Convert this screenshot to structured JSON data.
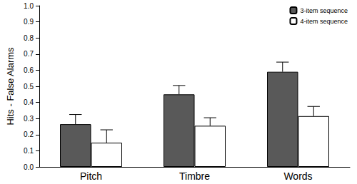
{
  "chart_data": {
    "type": "bar",
    "y_label": "Hits - False Alarms",
    "categories": [
      "Pitch",
      "Timbre",
      "Words"
    ],
    "series": [
      {
        "name": "3-item sequence",
        "color": "#595959",
        "values": [
          0.265,
          0.45,
          0.59
        ],
        "errors": [
          0.06,
          0.055,
          0.06
        ]
      },
      {
        "name": "4-item sequence",
        "color": "#ffffff",
        "values": [
          0.15,
          0.255,
          0.315
        ],
        "errors": [
          0.08,
          0.05,
          0.06
        ]
      }
    ],
    "ylim": [
      0,
      1
    ],
    "yticks": [
      {
        "value": 0,
        "label": "0.0"
      },
      0.1,
      0.2,
      0.3,
      0.4,
      0.5,
      0.6,
      0.7,
      0.8,
      0.9,
      {
        "value": 1,
        "label": "1.0"
      }
    ],
    "grid": false,
    "legend": "top-right"
  }
}
